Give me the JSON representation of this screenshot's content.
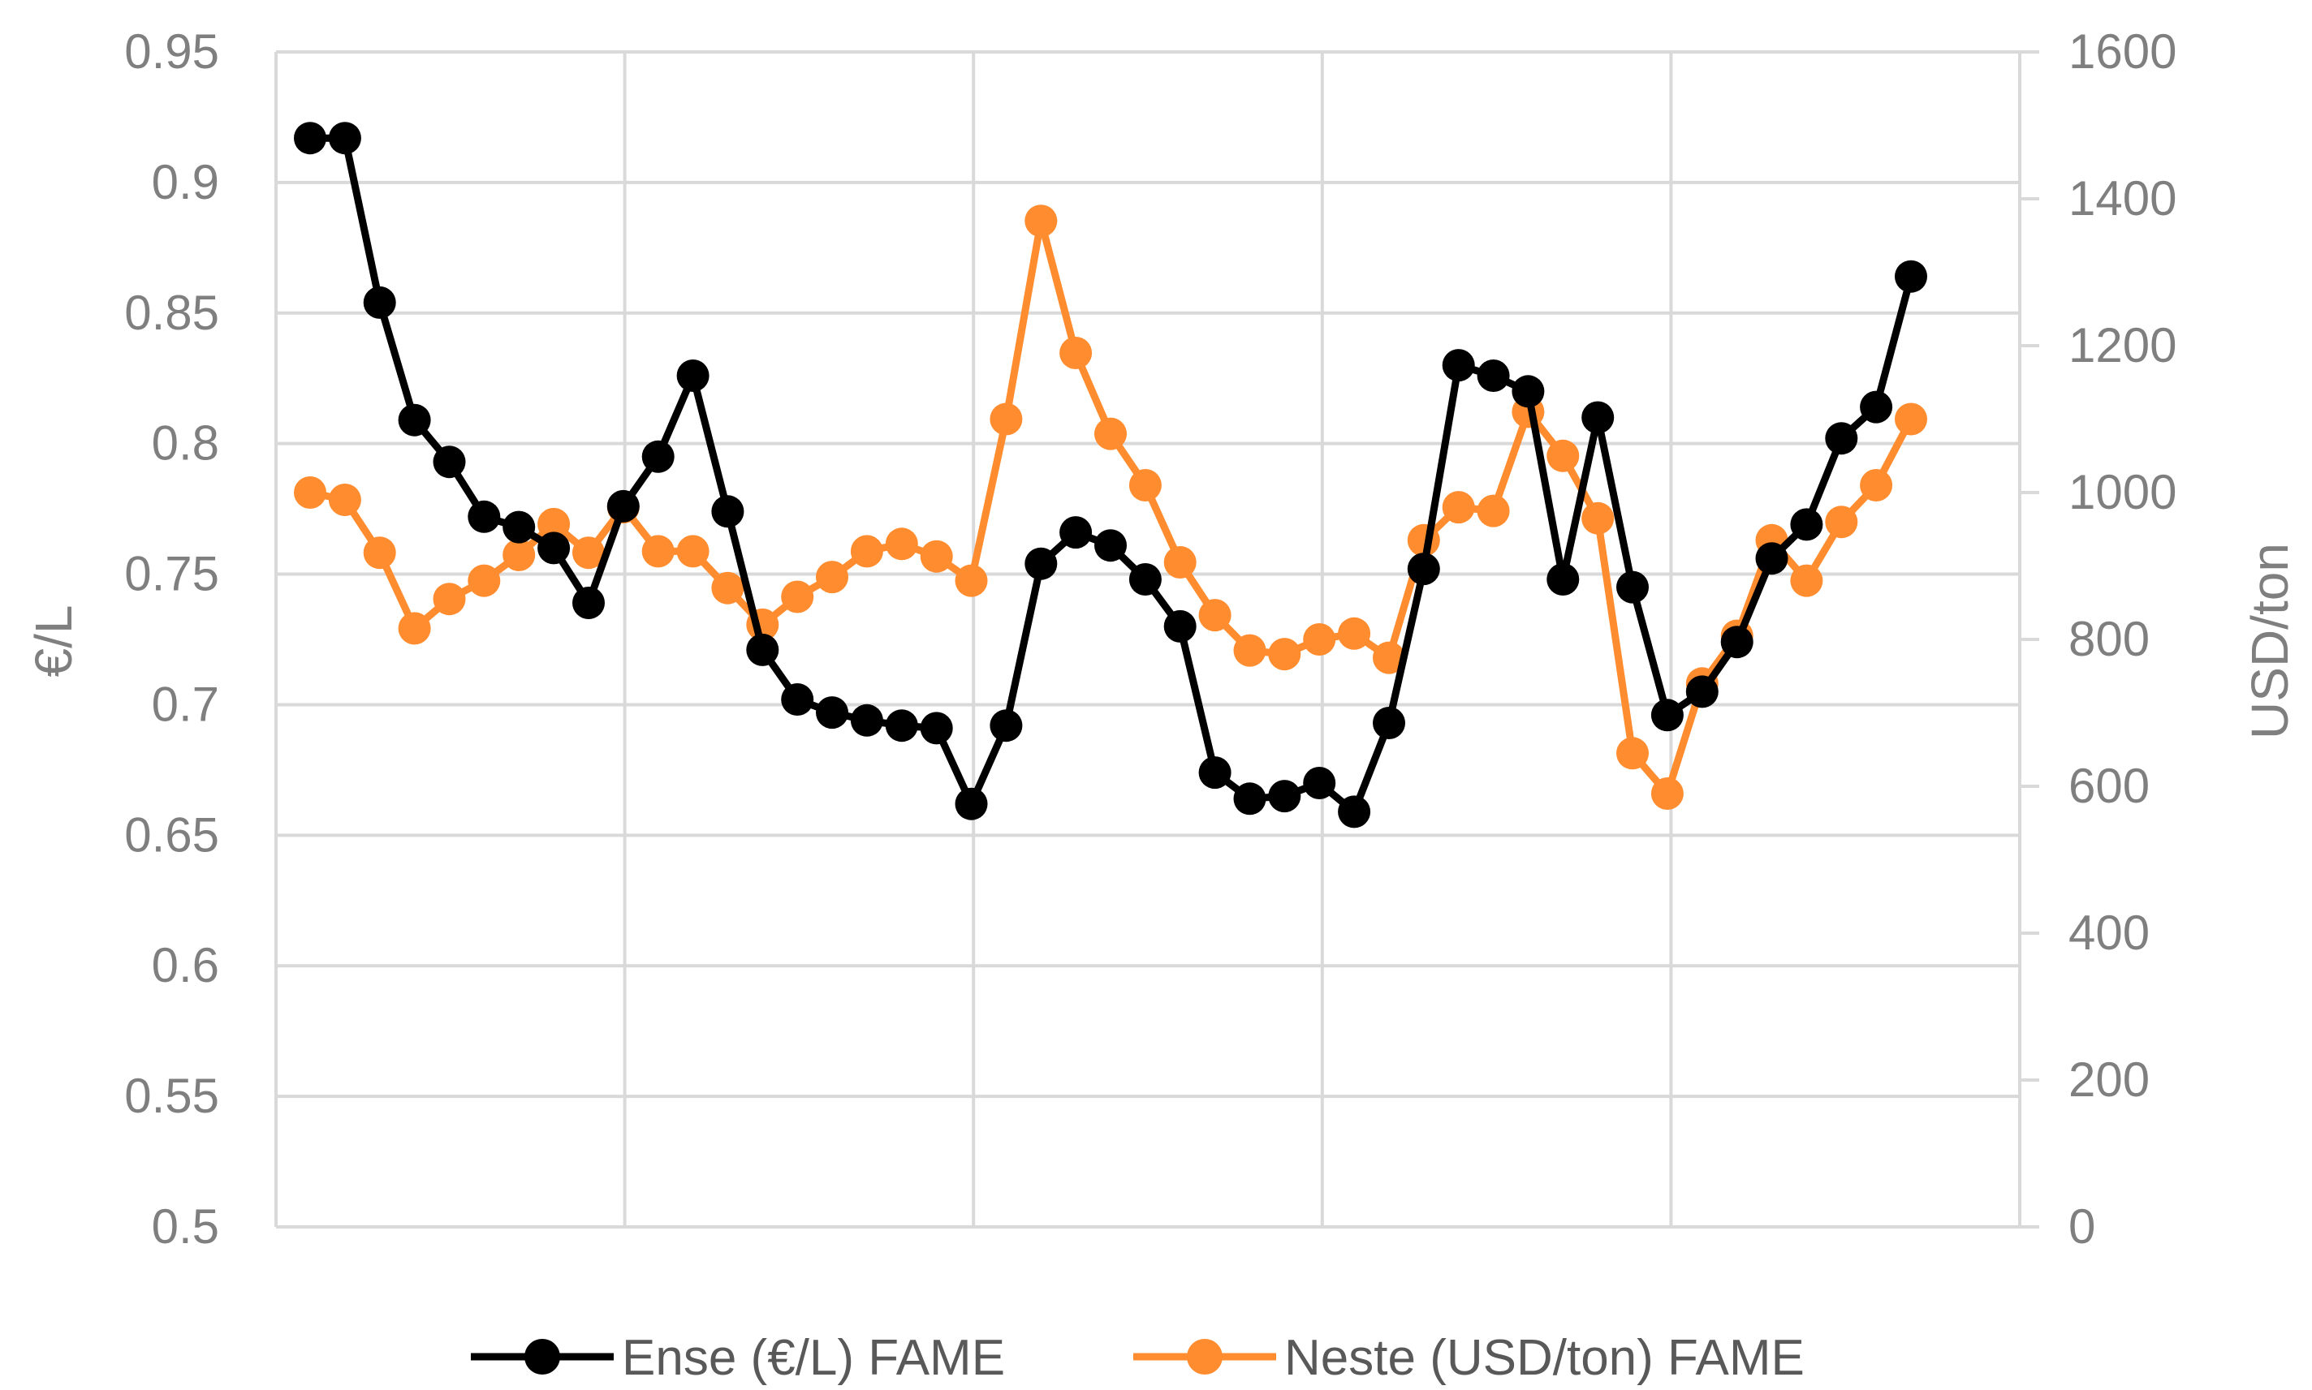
{
  "chart_data": {
    "type": "line",
    "ylabel_left": "€/L",
    "ylabel_right": "USD/ton",
    "y_left_range": [
      0.5,
      0.95
    ],
    "y_left_ticks": [
      "0.5",
      "0.55",
      "0.6",
      "0.65",
      "0.7",
      "0.75",
      "0.8",
      "0.85",
      "0.9",
      "0.95"
    ],
    "y_right_range": [
      0,
      1600
    ],
    "y_right_ticks": [
      "0",
      "200",
      "400",
      "600",
      "800",
      "1000",
      "1200",
      "1400",
      "1600"
    ],
    "x_gridlines": 5,
    "grid": true,
    "legend_position": "bottom",
    "series": [
      {
        "name": "Ense (€/L) FAME",
        "axis": "left",
        "color": "#000000",
        "values": [
          0.917,
          0.917,
          0.854,
          0.809,
          0.793,
          0.772,
          0.768,
          0.76,
          0.739,
          0.776,
          0.795,
          0.826,
          0.774,
          0.721,
          0.702,
          0.697,
          0.694,
          0.692,
          0.691,
          0.662,
          0.692,
          0.754,
          0.766,
          0.761,
          0.748,
          0.73,
          0.674,
          0.664,
          0.665,
          0.67,
          0.659,
          0.693,
          0.752,
          0.83,
          0.826,
          0.82,
          0.748,
          0.81,
          0.745,
          0.696,
          0.705,
          0.724,
          0.756,
          0.769,
          0.802,
          0.814,
          0.864
        ]
      },
      {
        "name": "Neste (USD/ton) FAME",
        "axis": "right",
        "color": "#ff8c2e",
        "values": [
          1000,
          990,
          918,
          815,
          855,
          880,
          915,
          957,
          918,
          980,
          920,
          920,
          870,
          820,
          858,
          885,
          920,
          930,
          913,
          880,
          1100,
          1370,
          1190,
          1080,
          1010,
          905,
          833,
          785,
          780,
          800,
          808,
          775,
          935,
          980,
          975,
          1110,
          1050,
          965,
          645,
          590,
          740,
          805,
          935,
          880,
          960,
          1010,
          1100
        ]
      }
    ]
  }
}
